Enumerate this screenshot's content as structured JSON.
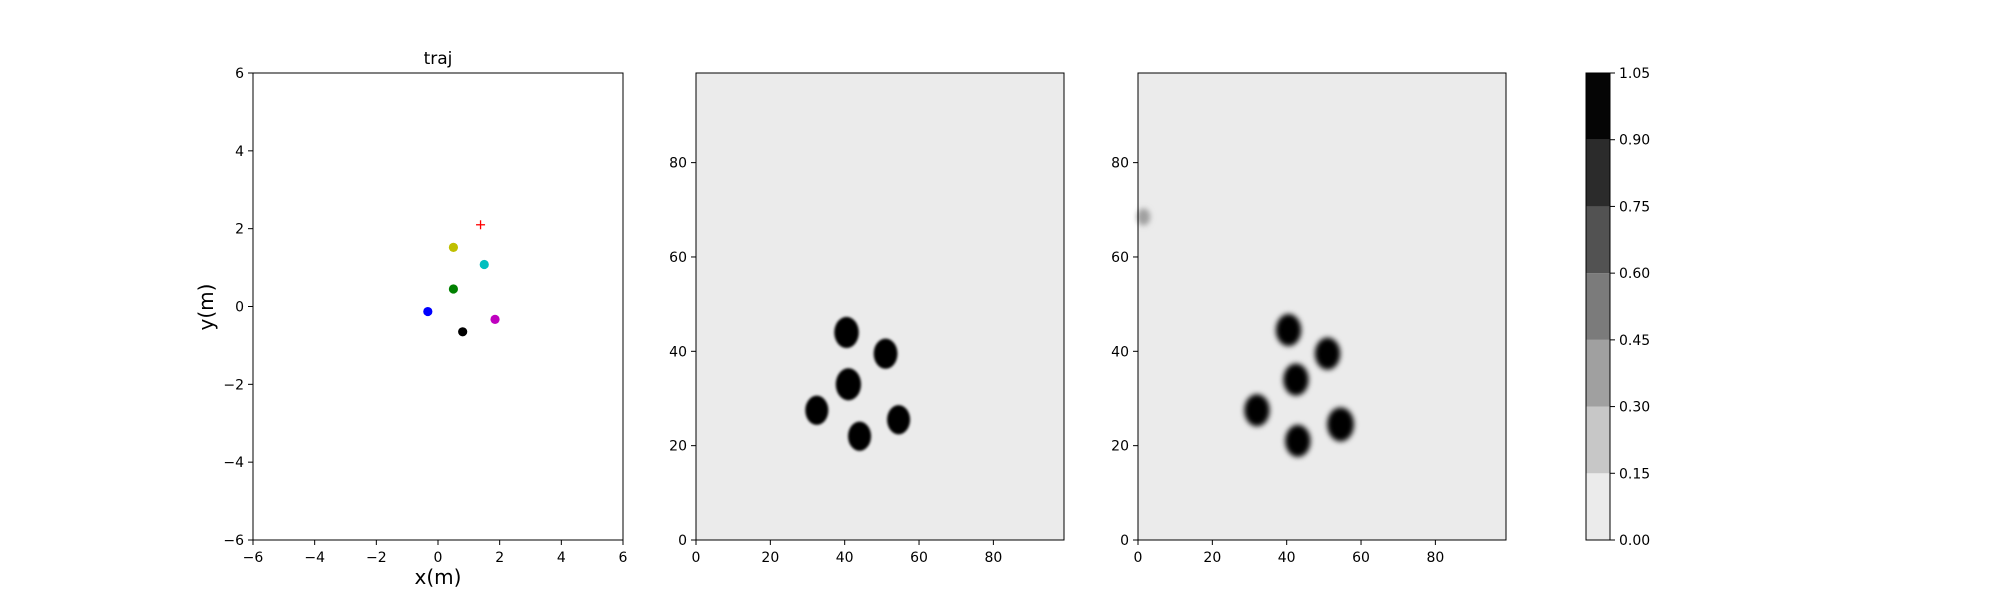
{
  "chart_data": [
    {
      "type": "scatter",
      "title": "traj",
      "xlabel": "x(m)",
      "ylabel": "y(m)",
      "xlim": [
        -6,
        6
      ],
      "ylim": [
        -6,
        6
      ],
      "xticks": [
        -6,
        -4,
        -2,
        0,
        2,
        4,
        6
      ],
      "yticks": [
        -6,
        -4,
        -2,
        0,
        2,
        4,
        6
      ],
      "grid": false,
      "points": [
        {
          "x": 0.5,
          "y": 1.52,
          "color": "#bfbf00",
          "marker": "circle"
        },
        {
          "x": 1.5,
          "y": 1.08,
          "color": "#00bfbf",
          "marker": "circle"
        },
        {
          "x": 0.5,
          "y": 0.45,
          "color": "#008000",
          "marker": "circle"
        },
        {
          "x": -0.33,
          "y": -0.13,
          "color": "#0000ff",
          "marker": "circle"
        },
        {
          "x": 1.85,
          "y": -0.33,
          "color": "#bf00bf",
          "marker": "circle"
        },
        {
          "x": 0.8,
          "y": -0.65,
          "color": "#000000",
          "marker": "circle"
        }
      ],
      "goal": {
        "x": 1.38,
        "y": 2.1,
        "color": "#ff0000",
        "marker": "plus"
      }
    },
    {
      "type": "heatmap",
      "title": "",
      "xlabel": "",
      "ylabel": "",
      "xlim": [
        0,
        99
      ],
      "ylim": [
        0,
        99
      ],
      "xticks": [
        0,
        20,
        40,
        60,
        80
      ],
      "yticks": [
        0,
        20,
        40,
        60,
        80
      ],
      "background_value": 0.05,
      "blobs": [
        {
          "x": 40.5,
          "y": 44,
          "r": 3.3,
          "value": 1.0
        },
        {
          "x": 51,
          "y": 39.5,
          "r": 3.2,
          "value": 1.0
        },
        {
          "x": 41,
          "y": 33,
          "r": 3.4,
          "value": 1.0
        },
        {
          "x": 32.5,
          "y": 27.5,
          "r": 3.1,
          "value": 1.0
        },
        {
          "x": 54.5,
          "y": 25.5,
          "r": 3.1,
          "value": 1.0
        },
        {
          "x": 44,
          "y": 22,
          "r": 3.1,
          "value": 1.0
        }
      ]
    },
    {
      "type": "heatmap",
      "title": "",
      "xlabel": "",
      "ylabel": "",
      "xlim": [
        0,
        99
      ],
      "ylim": [
        0,
        99
      ],
      "xticks": [
        0,
        20,
        40,
        60,
        80
      ],
      "yticks": [
        0,
        20,
        40,
        60,
        80
      ],
      "background_value": 0.05,
      "blobs": [
        {
          "x": 40.5,
          "y": 44.5,
          "r": 3.4,
          "value": 1.0
        },
        {
          "x": 51,
          "y": 39.5,
          "r": 3.4,
          "value": 1.0
        },
        {
          "x": 42.5,
          "y": 34,
          "r": 3.4,
          "value": 1.0
        },
        {
          "x": 32,
          "y": 27.5,
          "r": 3.4,
          "value": 1.0
        },
        {
          "x": 54.5,
          "y": 24.5,
          "r": 3.6,
          "value": 1.0
        },
        {
          "x": 43,
          "y": 21,
          "r": 3.4,
          "value": 1.0
        },
        {
          "x": 1.5,
          "y": 68.5,
          "r": 1.8,
          "value": 0.4
        }
      ]
    }
  ],
  "colorbar": {
    "levels": [
      0.0,
      0.15,
      0.3,
      0.45,
      0.6,
      0.75,
      0.9,
      1.05
    ],
    "tick_labels": [
      "0.00",
      "0.15",
      "0.30",
      "0.45",
      "0.60",
      "0.75",
      "0.90",
      "1.05"
    ],
    "colors": [
      "#ebebeb",
      "#c7c7c7",
      "#a0a0a0",
      "#7b7b7b",
      "#525252",
      "#2b2b2b",
      "#050505"
    ]
  }
}
